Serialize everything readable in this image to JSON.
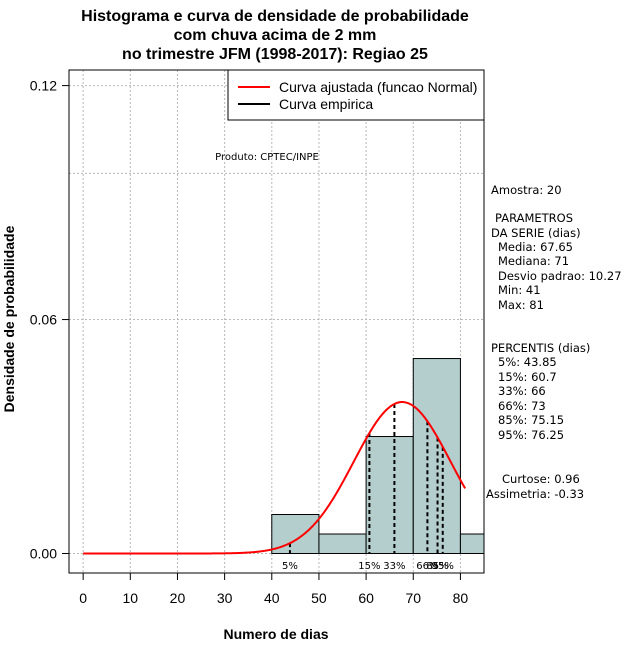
{
  "chart_data": {
    "type": "bar",
    "title_lines": [
      "Histograma e curva de densidade de probabilidade",
      "com chuva acima de 2 mm",
      "no trimestre JFM (1998-2017): Regiao 25"
    ],
    "xlabel": "Numero de dias",
    "ylabel": "Densidade de probabilidade",
    "xlim": [
      -3,
      85
    ],
    "ylim": [
      -0.005,
      0.124
    ],
    "x_ticks": [
      0,
      10,
      20,
      30,
      40,
      50,
      60,
      70,
      80
    ],
    "y_ticks": [
      0.0,
      0.06,
      0.12
    ],
    "y_tick_labels": [
      "0.00",
      "0.06",
      "0.12"
    ],
    "bins": [
      {
        "from": 40,
        "to": 50,
        "density": 0.01
      },
      {
        "from": 50,
        "to": 60,
        "density": 0.005
      },
      {
        "from": 60,
        "to": 70,
        "density": 0.03
      },
      {
        "from": 70,
        "to": 80,
        "density": 0.05
      },
      {
        "from": 80,
        "to": 90,
        "density": 0.005
      }
    ],
    "bar_color": "#b4cdcd",
    "curve_color": "#ff0000",
    "series": [
      {
        "name": "Curva ajustada (funcao Normal)",
        "distribution": "normal",
        "mean": 67.65,
        "sd": 10.27,
        "x_range": [
          0,
          81
        ]
      }
    ],
    "legend": [
      {
        "label": "Curva ajustada (funcao Normal)",
        "color": "#ff0000"
      },
      {
        "label": "Curva empirica",
        "color": "#000000"
      }
    ],
    "legend_position": "top-right",
    "grid": true,
    "grid_h_extra": [
      0.0975
    ],
    "credit": "Produto: CPTEC/INPE",
    "percentiles": [
      {
        "label": "5%",
        "value": 43.85
      },
      {
        "label": "15%",
        "value": 60.7
      },
      {
        "label": "33%",
        "value": 66
      },
      {
        "label": "66%",
        "value": 73
      },
      {
        "label": "85%",
        "value": 75.15
      },
      {
        "label": "95%",
        "value": 76.25
      }
    ],
    "stats": {
      "sample": "Amostra: 20",
      "params_header": [
        "PARAMETROS",
        "DA SERIE (dias)"
      ],
      "params": [
        "Media: 67.65",
        "Mediana: 71",
        "Desvio padrao: 10.27",
        "Min: 41",
        "Max: 81"
      ],
      "percentis_header": "PERCENTIS (dias)",
      "percentis": [
        "5%: 43.85",
        "15%: 60.7",
        "33%: 66",
        "66%: 73",
        "85%: 75.15",
        "95%: 76.25"
      ],
      "curtose": "Curtose: 0.96",
      "assimetria": "Assimetria: -0.33"
    }
  }
}
